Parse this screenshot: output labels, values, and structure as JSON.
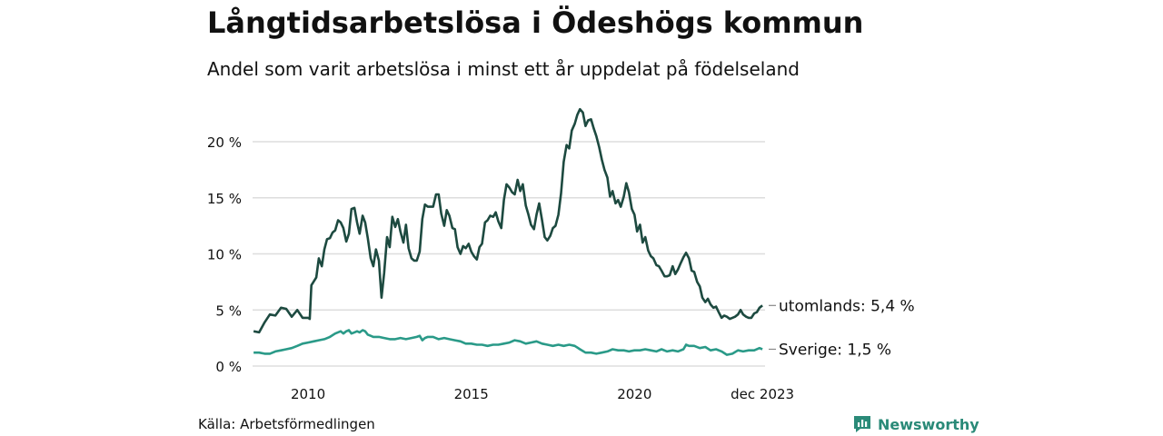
{
  "header": {
    "title": "Långtidsarbetslösa i Ödeshögs kommun",
    "subtitle": "Andel som varit arbetslösa i minst ett år uppdelat på födelseland"
  },
  "footer": {
    "source": "Källa: Arbetsförmedlingen",
    "brand": "Newsworthy",
    "brand_icon": "newsworthy-logo-icon"
  },
  "colors": {
    "utomlands": "#1d4a40",
    "sverige": "#2a9a88",
    "grid": "#dddddd",
    "text": "#111111"
  },
  "chart_data": {
    "type": "line",
    "title": "Långtidsarbetslösa i Ödeshögs kommun",
    "xlabel": "",
    "ylabel": "",
    "xlim": [
      2008.3,
      2024.0
    ],
    "ylim": [
      0,
      23
    ],
    "y_ticks": [
      0,
      5,
      10,
      15,
      20
    ],
    "y_tick_labels": [
      "0 %",
      "5 %",
      "10 %",
      "15 %",
      "20 %"
    ],
    "x_ticks": [
      2010,
      2015,
      2020,
      2023.92
    ],
    "x_tick_labels": [
      "2010",
      "2015",
      "2020",
      "dec 2023"
    ],
    "grid": true,
    "series": [
      {
        "name": "utomlands",
        "end_label": "utomlands: 5,4 %",
        "points": [
          [
            2008.33,
            3.1
          ],
          [
            2008.5,
            3.0
          ],
          [
            2008.67,
            3.9
          ],
          [
            2008.83,
            4.6
          ],
          [
            2009.0,
            4.5
          ],
          [
            2009.17,
            5.2
          ],
          [
            2009.33,
            5.1
          ],
          [
            2009.5,
            4.4
          ],
          [
            2009.67,
            5.0
          ],
          [
            2009.83,
            4.3
          ],
          [
            2010.0,
            4.3
          ],
          [
            2010.05,
            4.2
          ],
          [
            2010.1,
            7.2
          ],
          [
            2010.25,
            7.9
          ],
          [
            2010.33,
            9.6
          ],
          [
            2010.42,
            8.9
          ],
          [
            2010.5,
            10.4
          ],
          [
            2010.58,
            11.3
          ],
          [
            2010.67,
            11.4
          ],
          [
            2010.75,
            11.9
          ],
          [
            2010.83,
            12.1
          ],
          [
            2010.92,
            13.0
          ],
          [
            2011.0,
            12.8
          ],
          [
            2011.08,
            12.3
          ],
          [
            2011.17,
            11.1
          ],
          [
            2011.25,
            11.8
          ],
          [
            2011.33,
            14.0
          ],
          [
            2011.42,
            14.1
          ],
          [
            2011.5,
            12.8
          ],
          [
            2011.58,
            11.8
          ],
          [
            2011.67,
            13.4
          ],
          [
            2011.75,
            12.8
          ],
          [
            2011.83,
            11.4
          ],
          [
            2011.92,
            9.6
          ],
          [
            2012.0,
            8.9
          ],
          [
            2012.08,
            10.4
          ],
          [
            2012.17,
            9.4
          ],
          [
            2012.25,
            6.1
          ],
          [
            2012.33,
            8.3
          ],
          [
            2012.42,
            11.5
          ],
          [
            2012.5,
            10.6
          ],
          [
            2012.58,
            13.3
          ],
          [
            2012.67,
            12.4
          ],
          [
            2012.75,
            13.1
          ],
          [
            2012.83,
            12.0
          ],
          [
            2012.92,
            11.0
          ],
          [
            2013.0,
            12.6
          ],
          [
            2013.08,
            10.5
          ],
          [
            2013.17,
            9.6
          ],
          [
            2013.25,
            9.4
          ],
          [
            2013.33,
            9.4
          ],
          [
            2013.42,
            10.2
          ],
          [
            2013.5,
            13.1
          ],
          [
            2013.58,
            14.4
          ],
          [
            2013.67,
            14.2
          ],
          [
            2013.83,
            14.2
          ],
          [
            2013.92,
            15.3
          ],
          [
            2014.0,
            15.3
          ],
          [
            2014.08,
            13.6
          ],
          [
            2014.17,
            12.5
          ],
          [
            2014.25,
            13.9
          ],
          [
            2014.33,
            13.4
          ],
          [
            2014.42,
            12.3
          ],
          [
            2014.5,
            12.2
          ],
          [
            2014.58,
            10.6
          ],
          [
            2014.67,
            10.0
          ],
          [
            2014.75,
            10.7
          ],
          [
            2014.83,
            10.5
          ],
          [
            2014.92,
            10.9
          ],
          [
            2015.0,
            10.2
          ],
          [
            2015.08,
            9.8
          ],
          [
            2015.17,
            9.5
          ],
          [
            2015.25,
            10.6
          ],
          [
            2015.33,
            10.9
          ],
          [
            2015.42,
            12.8
          ],
          [
            2015.5,
            13.0
          ],
          [
            2015.58,
            13.4
          ],
          [
            2015.67,
            13.3
          ],
          [
            2015.75,
            13.7
          ],
          [
            2015.83,
            12.9
          ],
          [
            2015.92,
            12.3
          ],
          [
            2016.0,
            14.8
          ],
          [
            2016.08,
            16.2
          ],
          [
            2016.17,
            15.9
          ],
          [
            2016.25,
            15.5
          ],
          [
            2016.33,
            15.3
          ],
          [
            2016.42,
            16.6
          ],
          [
            2016.5,
            15.6
          ],
          [
            2016.58,
            16.2
          ],
          [
            2016.67,
            14.3
          ],
          [
            2016.75,
            13.5
          ],
          [
            2016.83,
            12.6
          ],
          [
            2016.92,
            12.2
          ],
          [
            2017.0,
            13.5
          ],
          [
            2017.08,
            14.5
          ],
          [
            2017.17,
            13.0
          ],
          [
            2017.25,
            11.5
          ],
          [
            2017.33,
            11.2
          ],
          [
            2017.42,
            11.6
          ],
          [
            2017.5,
            12.3
          ],
          [
            2017.58,
            12.5
          ],
          [
            2017.67,
            13.5
          ],
          [
            2017.75,
            15.4
          ],
          [
            2017.83,
            18.2
          ],
          [
            2017.92,
            19.7
          ],
          [
            2018.0,
            19.4
          ],
          [
            2018.08,
            21.0
          ],
          [
            2018.17,
            21.6
          ],
          [
            2018.25,
            22.4
          ],
          [
            2018.33,
            22.9
          ],
          [
            2018.42,
            22.6
          ],
          [
            2018.5,
            21.4
          ],
          [
            2018.58,
            21.9
          ],
          [
            2018.67,
            22.0
          ],
          [
            2018.75,
            21.2
          ],
          [
            2018.83,
            20.5
          ],
          [
            2018.92,
            19.5
          ],
          [
            2019.0,
            18.4
          ],
          [
            2019.08,
            17.5
          ],
          [
            2019.17,
            16.8
          ],
          [
            2019.25,
            15.1
          ],
          [
            2019.33,
            15.6
          ],
          [
            2019.42,
            14.5
          ],
          [
            2019.5,
            14.8
          ],
          [
            2019.58,
            14.2
          ],
          [
            2019.67,
            15.1
          ],
          [
            2019.75,
            16.3
          ],
          [
            2019.83,
            15.5
          ],
          [
            2019.92,
            14.0
          ],
          [
            2020.0,
            13.5
          ],
          [
            2020.08,
            12.0
          ],
          [
            2020.17,
            12.6
          ],
          [
            2020.25,
            11.0
          ],
          [
            2020.33,
            11.5
          ],
          [
            2020.42,
            10.3
          ],
          [
            2020.5,
            9.8
          ],
          [
            2020.58,
            9.6
          ],
          [
            2020.67,
            9.0
          ],
          [
            2020.75,
            8.9
          ],
          [
            2020.83,
            8.5
          ],
          [
            2020.92,
            8.0
          ],
          [
            2021.0,
            8.0
          ],
          [
            2021.08,
            8.1
          ],
          [
            2021.17,
            8.9
          ],
          [
            2021.25,
            8.2
          ],
          [
            2021.33,
            8.6
          ],
          [
            2021.42,
            9.2
          ],
          [
            2021.5,
            9.7
          ],
          [
            2021.58,
            10.1
          ],
          [
            2021.67,
            9.6
          ],
          [
            2021.75,
            8.5
          ],
          [
            2021.83,
            8.4
          ],
          [
            2021.92,
            7.5
          ],
          [
            2022.0,
            7.1
          ],
          [
            2022.08,
            6.1
          ],
          [
            2022.17,
            5.7
          ],
          [
            2022.25,
            6.0
          ],
          [
            2022.33,
            5.5
          ],
          [
            2022.42,
            5.2
          ],
          [
            2022.5,
            5.3
          ],
          [
            2022.58,
            4.8
          ],
          [
            2022.67,
            4.3
          ],
          [
            2022.75,
            4.5
          ],
          [
            2022.83,
            4.4
          ],
          [
            2022.92,
            4.2
          ],
          [
            2023.0,
            4.3
          ],
          [
            2023.08,
            4.4
          ],
          [
            2023.17,
            4.6
          ],
          [
            2023.25,
            5.0
          ],
          [
            2023.33,
            4.6
          ],
          [
            2023.42,
            4.4
          ],
          [
            2023.5,
            4.3
          ],
          [
            2023.58,
            4.3
          ],
          [
            2023.67,
            4.7
          ],
          [
            2023.75,
            4.8
          ],
          [
            2023.83,
            5.2
          ],
          [
            2023.92,
            5.4
          ]
        ]
      },
      {
        "name": "Sverige",
        "end_label": "Sverige: 1,5 %",
        "points": [
          [
            2008.33,
            1.2
          ],
          [
            2008.5,
            1.2
          ],
          [
            2008.67,
            1.1
          ],
          [
            2008.83,
            1.1
          ],
          [
            2009.0,
            1.3
          ],
          [
            2009.17,
            1.4
          ],
          [
            2009.33,
            1.5
          ],
          [
            2009.5,
            1.6
          ],
          [
            2009.67,
            1.8
          ],
          [
            2009.83,
            2.0
          ],
          [
            2010.0,
            2.1
          ],
          [
            2010.17,
            2.2
          ],
          [
            2010.33,
            2.3
          ],
          [
            2010.5,
            2.4
          ],
          [
            2010.67,
            2.6
          ],
          [
            2010.83,
            2.9
          ],
          [
            2011.0,
            3.1
          ],
          [
            2011.08,
            2.9
          ],
          [
            2011.17,
            3.1
          ],
          [
            2011.25,
            3.2
          ],
          [
            2011.33,
            2.9
          ],
          [
            2011.42,
            3.0
          ],
          [
            2011.5,
            3.1
          ],
          [
            2011.58,
            3.0
          ],
          [
            2011.67,
            3.2
          ],
          [
            2011.75,
            3.1
          ],
          [
            2011.83,
            2.8
          ],
          [
            2011.92,
            2.7
          ],
          [
            2012.0,
            2.6
          ],
          [
            2012.17,
            2.6
          ],
          [
            2012.33,
            2.5
          ],
          [
            2012.5,
            2.4
          ],
          [
            2012.67,
            2.4
          ],
          [
            2012.83,
            2.5
          ],
          [
            2013.0,
            2.4
          ],
          [
            2013.17,
            2.5
          ],
          [
            2013.33,
            2.6
          ],
          [
            2013.42,
            2.7
          ],
          [
            2013.5,
            2.3
          ],
          [
            2013.58,
            2.5
          ],
          [
            2013.67,
            2.6
          ],
          [
            2013.83,
            2.6
          ],
          [
            2014.0,
            2.4
          ],
          [
            2014.17,
            2.5
          ],
          [
            2014.33,
            2.4
          ],
          [
            2014.5,
            2.3
          ],
          [
            2014.67,
            2.2
          ],
          [
            2014.83,
            2.0
          ],
          [
            2015.0,
            2.0
          ],
          [
            2015.17,
            1.9
          ],
          [
            2015.33,
            1.9
          ],
          [
            2015.5,
            1.8
          ],
          [
            2015.67,
            1.9
          ],
          [
            2015.83,
            1.9
          ],
          [
            2016.0,
            2.0
          ],
          [
            2016.17,
            2.1
          ],
          [
            2016.33,
            2.3
          ],
          [
            2016.5,
            2.2
          ],
          [
            2016.67,
            2.0
          ],
          [
            2016.83,
            2.1
          ],
          [
            2017.0,
            2.2
          ],
          [
            2017.17,
            2.0
          ],
          [
            2017.33,
            1.9
          ],
          [
            2017.5,
            1.8
          ],
          [
            2017.67,
            1.9
          ],
          [
            2017.83,
            1.8
          ],
          [
            2018.0,
            1.9
          ],
          [
            2018.17,
            1.8
          ],
          [
            2018.33,
            1.5
          ],
          [
            2018.5,
            1.2
          ],
          [
            2018.67,
            1.2
          ],
          [
            2018.83,
            1.1
          ],
          [
            2019.0,
            1.2
          ],
          [
            2019.17,
            1.3
          ],
          [
            2019.33,
            1.5
          ],
          [
            2019.5,
            1.4
          ],
          [
            2019.67,
            1.4
          ],
          [
            2019.83,
            1.3
          ],
          [
            2020.0,
            1.4
          ],
          [
            2020.17,
            1.4
          ],
          [
            2020.33,
            1.5
          ],
          [
            2020.5,
            1.4
          ],
          [
            2020.67,
            1.3
          ],
          [
            2020.83,
            1.5
          ],
          [
            2021.0,
            1.3
          ],
          [
            2021.17,
            1.4
          ],
          [
            2021.33,
            1.3
          ],
          [
            2021.5,
            1.5
          ],
          [
            2021.58,
            1.9
          ],
          [
            2021.67,
            1.8
          ],
          [
            2021.83,
            1.8
          ],
          [
            2022.0,
            1.6
          ],
          [
            2022.17,
            1.7
          ],
          [
            2022.33,
            1.4
          ],
          [
            2022.5,
            1.5
          ],
          [
            2022.67,
            1.3
          ],
          [
            2022.83,
            1.0
          ],
          [
            2023.0,
            1.1
          ],
          [
            2023.17,
            1.4
          ],
          [
            2023.33,
            1.3
          ],
          [
            2023.5,
            1.4
          ],
          [
            2023.67,
            1.4
          ],
          [
            2023.83,
            1.6
          ],
          [
            2023.92,
            1.5
          ]
        ]
      }
    ]
  }
}
